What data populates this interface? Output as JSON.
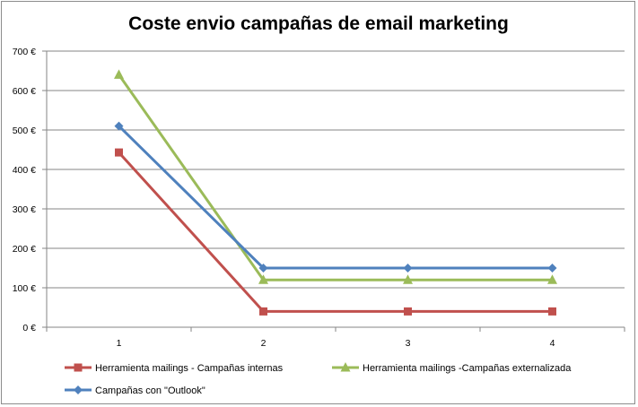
{
  "chart_data": {
    "type": "line",
    "title": "Coste envio campañas de email marketing",
    "xlabel": "",
    "ylabel": "",
    "x": [
      "1",
      "2",
      "3",
      "4"
    ],
    "y_ticks": [
      "0 €",
      "100 €",
      "200 €",
      "300 €",
      "400 €",
      "500 €",
      "600 €",
      "700 €"
    ],
    "ylim": [
      0,
      700
    ],
    "grid": "horizontal",
    "legend_position": "bottom",
    "series": [
      {
        "name": "Herramienta mailings - Campañas internas",
        "values": [
          443,
          40,
          40,
          40
        ],
        "color": "#c0504d",
        "marker": "square"
      },
      {
        "name": "Herramienta mailings -Campañas externalizada",
        "values": [
          640,
          120,
          120,
          120
        ],
        "color": "#9bbb59",
        "marker": "triangle"
      },
      {
        "name": "Campañas con \"Outlook\"",
        "values": [
          510,
          150,
          150,
          150
        ],
        "color": "#4f81bd",
        "marker": "diamond"
      }
    ]
  }
}
